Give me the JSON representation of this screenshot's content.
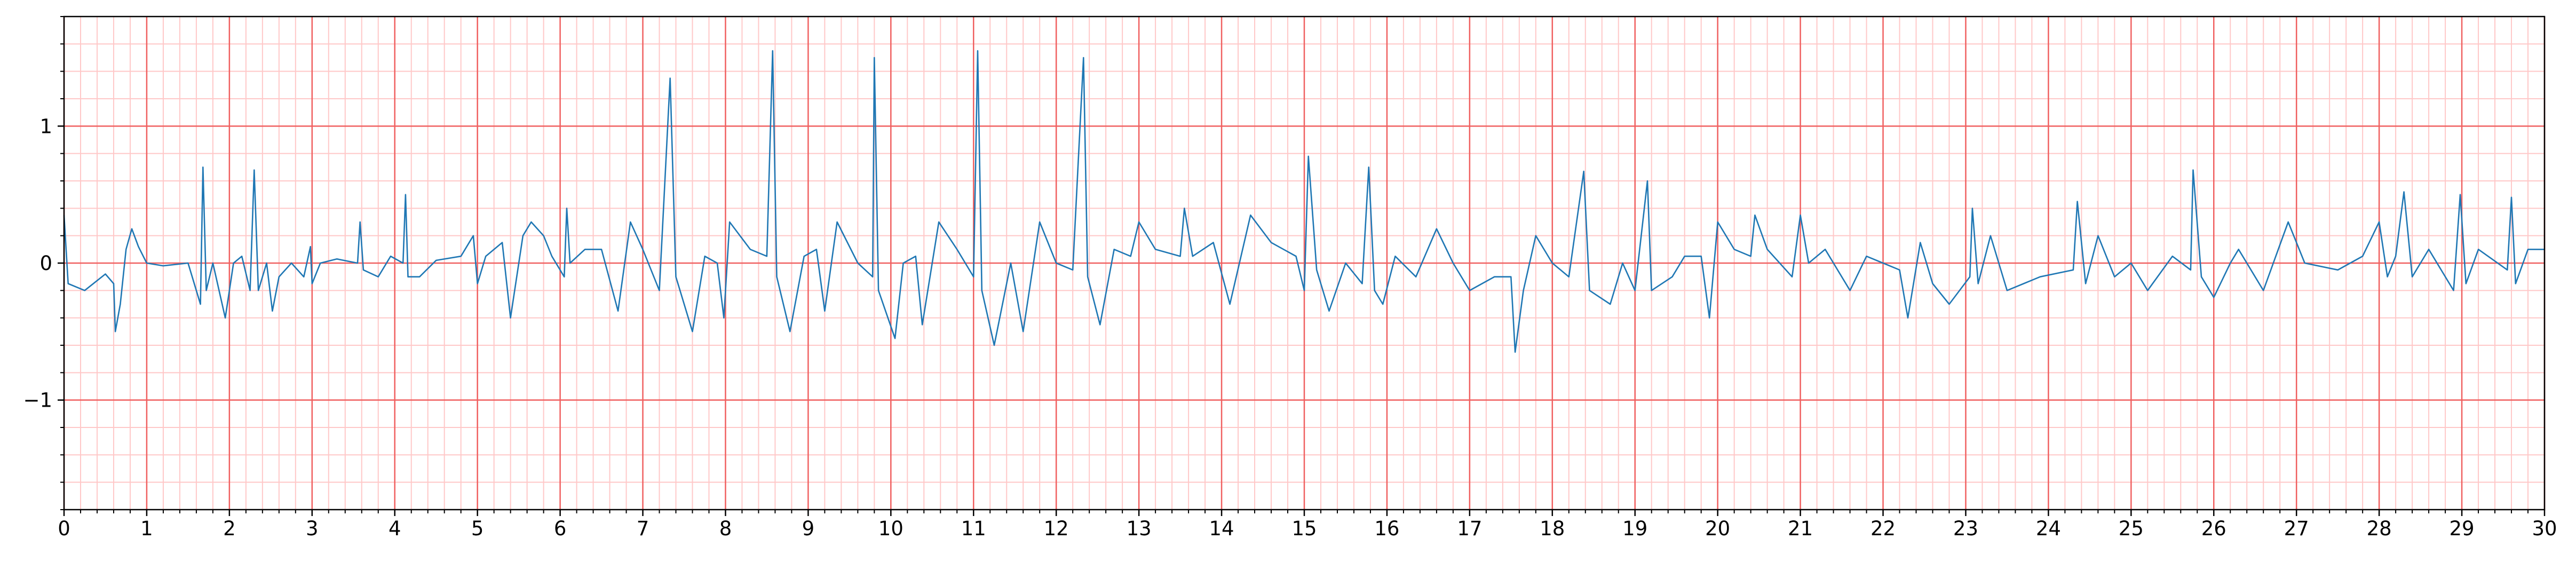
{
  "chart_data": {
    "type": "line",
    "color": "#1f77b4",
    "grid": true,
    "xlim": [
      0,
      30
    ],
    "ylim": [
      -1.8,
      1.8
    ],
    "xticks": [
      0,
      1,
      2,
      3,
      4,
      5,
      6,
      7,
      8,
      9,
      10,
      11,
      12,
      13,
      14,
      15,
      16,
      17,
      18,
      19,
      20,
      21,
      22,
      23,
      24,
      25,
      26,
      27,
      28,
      29,
      30
    ],
    "yticks": [
      {
        "value": -1,
        "label": "−1"
      },
      0,
      1
    ],
    "x": [
      0,
      0.05,
      0.25,
      0.5,
      0.6,
      0.62,
      0.68,
      0.75,
      0.82,
      0.9,
      1,
      1.2,
      1.5,
      1.65,
      1.68,
      1.72,
      1.8,
      1.95,
      2.05,
      2.15,
      2.25,
      2.3,
      2.35,
      2.45,
      2.52,
      2.6,
      2.75,
      2.9,
      2.98,
      3,
      3.1,
      3.3,
      3.55,
      3.58,
      3.62,
      3.8,
      3.95,
      4.1,
      4.13,
      4.16,
      4.3,
      4.5,
      4.8,
      4.95,
      5,
      5.1,
      5.3,
      5.4,
      5.55,
      5.65,
      5.8,
      5.9,
      6.05,
      6.08,
      6.12,
      6.3,
      6.5,
      6.7,
      6.85,
      7,
      7.2,
      7.33,
      7.4,
      7.6,
      7.75,
      7.9,
      7.98,
      8.05,
      8.3,
      8.5,
      8.57,
      8.62,
      8.78,
      8.95,
      9.1,
      9.2,
      9.35,
      9.6,
      9.78,
      9.8,
      9.85,
      10.05,
      10.15,
      10.3,
      10.38,
      10.58,
      10.8,
      11,
      11.05,
      11.1,
      11.25,
      11.45,
      11.6,
      11.8,
      12,
      12.2,
      12.33,
      12.38,
      12.53,
      12.7,
      12.9,
      13,
      13.2,
      13.5,
      13.55,
      13.65,
      13.9,
      14.1,
      14.35,
      14.6,
      14.9,
      15,
      15.05,
      15.15,
      15.3,
      15.5,
      15.7,
      15.78,
      15.85,
      15.95,
      16.1,
      16.35,
      16.6,
      16.8,
      17,
      17.3,
      17.5,
      17.55,
      17.65,
      17.8,
      18,
      18.2,
      18.38,
      18.45,
      18.7,
      18.85,
      19,
      19.15,
      19.2,
      19.45,
      19.6,
      19.8,
      19.9,
      20,
      20.2,
      20.4,
      20.45,
      20.6,
      20.9,
      21,
      21.1,
      21.3,
      21.6,
      21.8,
      22,
      22.2,
      22.3,
      22.45,
      22.6,
      22.8,
      23.05,
      23.08,
      23.15,
      23.3,
      23.5,
      23.7,
      23.9,
      24.3,
      24.35,
      24.45,
      24.6,
      24.8,
      25,
      25.2,
      25.5,
      25.72,
      25.75,
      25.85,
      26,
      26.2,
      26.3,
      26.6,
      26.9,
      27.1,
      27.5,
      27.8,
      28,
      28.1,
      28.2,
      28.3,
      28.4,
      28.6,
      28.9,
      28.98,
      29.05,
      29.2,
      29.55,
      29.6,
      29.65,
      29.8,
      30
    ],
    "values": [
      0.35,
      -0.15,
      -0.2,
      -0.08,
      -0.15,
      -0.5,
      -0.3,
      0.1,
      0.25,
      0.12,
      0,
      -0.02,
      0,
      -0.3,
      0.7,
      -0.2,
      0,
      -0.4,
      0,
      0.05,
      -0.2,
      0.68,
      -0.2,
      0,
      -0.35,
      -0.1,
      0,
      -0.1,
      0.12,
      -0.15,
      0,
      0.03,
      0,
      0.3,
      -0.05,
      -0.1,
      0.05,
      0,
      0.5,
      -0.1,
      -0.1,
      0.02,
      0.05,
      0.2,
      -0.15,
      0.05,
      0.15,
      -0.4,
      0.2,
      0.3,
      0.2,
      0.05,
      -0.1,
      0.4,
      0,
      0.1,
      0.1,
      -0.35,
      0.3,
      0.1,
      -0.2,
      1.35,
      -0.1,
      -0.5,
      0.05,
      0,
      -0.4,
      0.3,
      0.1,
      0.05,
      1.55,
      -0.1,
      -0.5,
      0.05,
      0.1,
      -0.35,
      0.3,
      0,
      -0.1,
      1.5,
      -0.2,
      -0.55,
      0,
      0.05,
      -0.45,
      0.3,
      0.1,
      -0.1,
      1.55,
      -0.2,
      -0.6,
      0,
      -0.5,
      0.3,
      0,
      -0.05,
      1.5,
      -0.1,
      -0.45,
      0.1,
      0.05,
      0.3,
      0.1,
      0.05,
      0.4,
      0.05,
      0.15,
      -0.3,
      0.35,
      0.15,
      0.05,
      -0.2,
      0.78,
      -0.05,
      -0.35,
      0,
      -0.15,
      0.7,
      -0.2,
      -0.3,
      0.05,
      -0.1,
      0.25,
      0,
      -0.2,
      -0.1,
      -0.1,
      -0.65,
      -0.2,
      0.2,
      0,
      -0.1,
      0.67,
      -0.2,
      -0.3,
      0,
      -0.2,
      0.6,
      -0.2,
      -0.1,
      0.05,
      0.05,
      -0.4,
      0.3,
      0.1,
      0.05,
      0.35,
      0.1,
      -0.1,
      0.35,
      0,
      0.1,
      -0.2,
      0.05,
      0,
      -0.05,
      -0.4,
      0.15,
      -0.15,
      -0.3,
      -0.1,
      0.4,
      -0.15,
      0.2,
      -0.2,
      -0.15,
      -0.1,
      -0.05,
      0.45,
      -0.15,
      0.2,
      -0.1,
      0,
      -0.2,
      0.05,
      -0.05,
      0.68,
      -0.1,
      -0.25,
      0,
      0.1,
      -0.2,
      0.3,
      0,
      -0.05,
      0.05,
      0.3,
      -0.1,
      0.05,
      0.52,
      -0.1,
      0.1,
      -0.2,
      0.5,
      -0.15,
      0.1,
      -0.05,
      0.48,
      -0.15,
      0.1,
      0.1
    ]
  }
}
